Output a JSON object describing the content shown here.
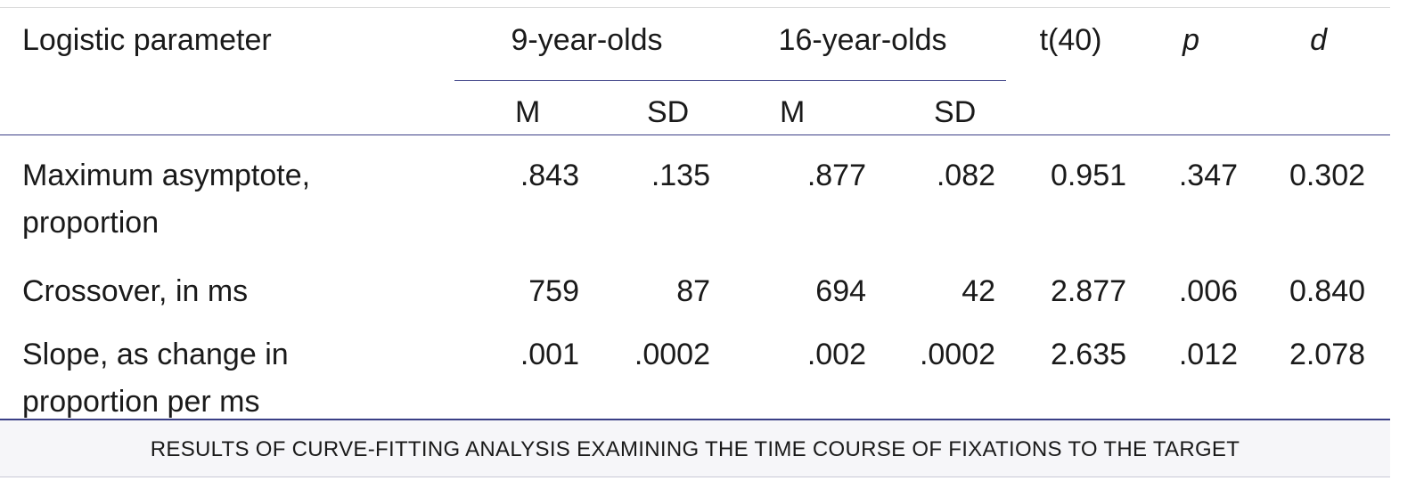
{
  "table": {
    "header": {
      "param": "Logistic parameter",
      "group1": "9-year-olds",
      "group2": "16-year-olds",
      "t": "t(40)",
      "p": "p",
      "d": "d",
      "m1": "M",
      "sd1": "SD",
      "m2": "M",
      "sd2": "SD"
    },
    "rows": [
      {
        "label": "Maximum asymptote, proportion",
        "m1": ".843",
        "sd1": ".135",
        "m2": ".877",
        "sd2": ".082",
        "t": "0.951",
        "p": ".347",
        "d": "0.302"
      },
      {
        "label": "Crossover, in ms",
        "m1": "759",
        "sd1": "87",
        "m2": "694",
        "sd2": "42",
        "t": "2.877",
        "p": ".006",
        "d": "0.840"
      },
      {
        "label": "Slope, as change in proportion per ms",
        "m1": ".001",
        "sd1": ".0002",
        "m2": ".002",
        "sd2": ".0002",
        "t": "2.635",
        "p": ".012",
        "d": "2.078"
      }
    ],
    "caption": "RESULTS OF CURVE-FITTING ANALYSIS EXAMINING THE TIME COURSE OF FIXATIONS TO THE TARGET"
  },
  "colors": {
    "rule": "#3b3f86",
    "caption_bg": "#f6f6f9"
  }
}
